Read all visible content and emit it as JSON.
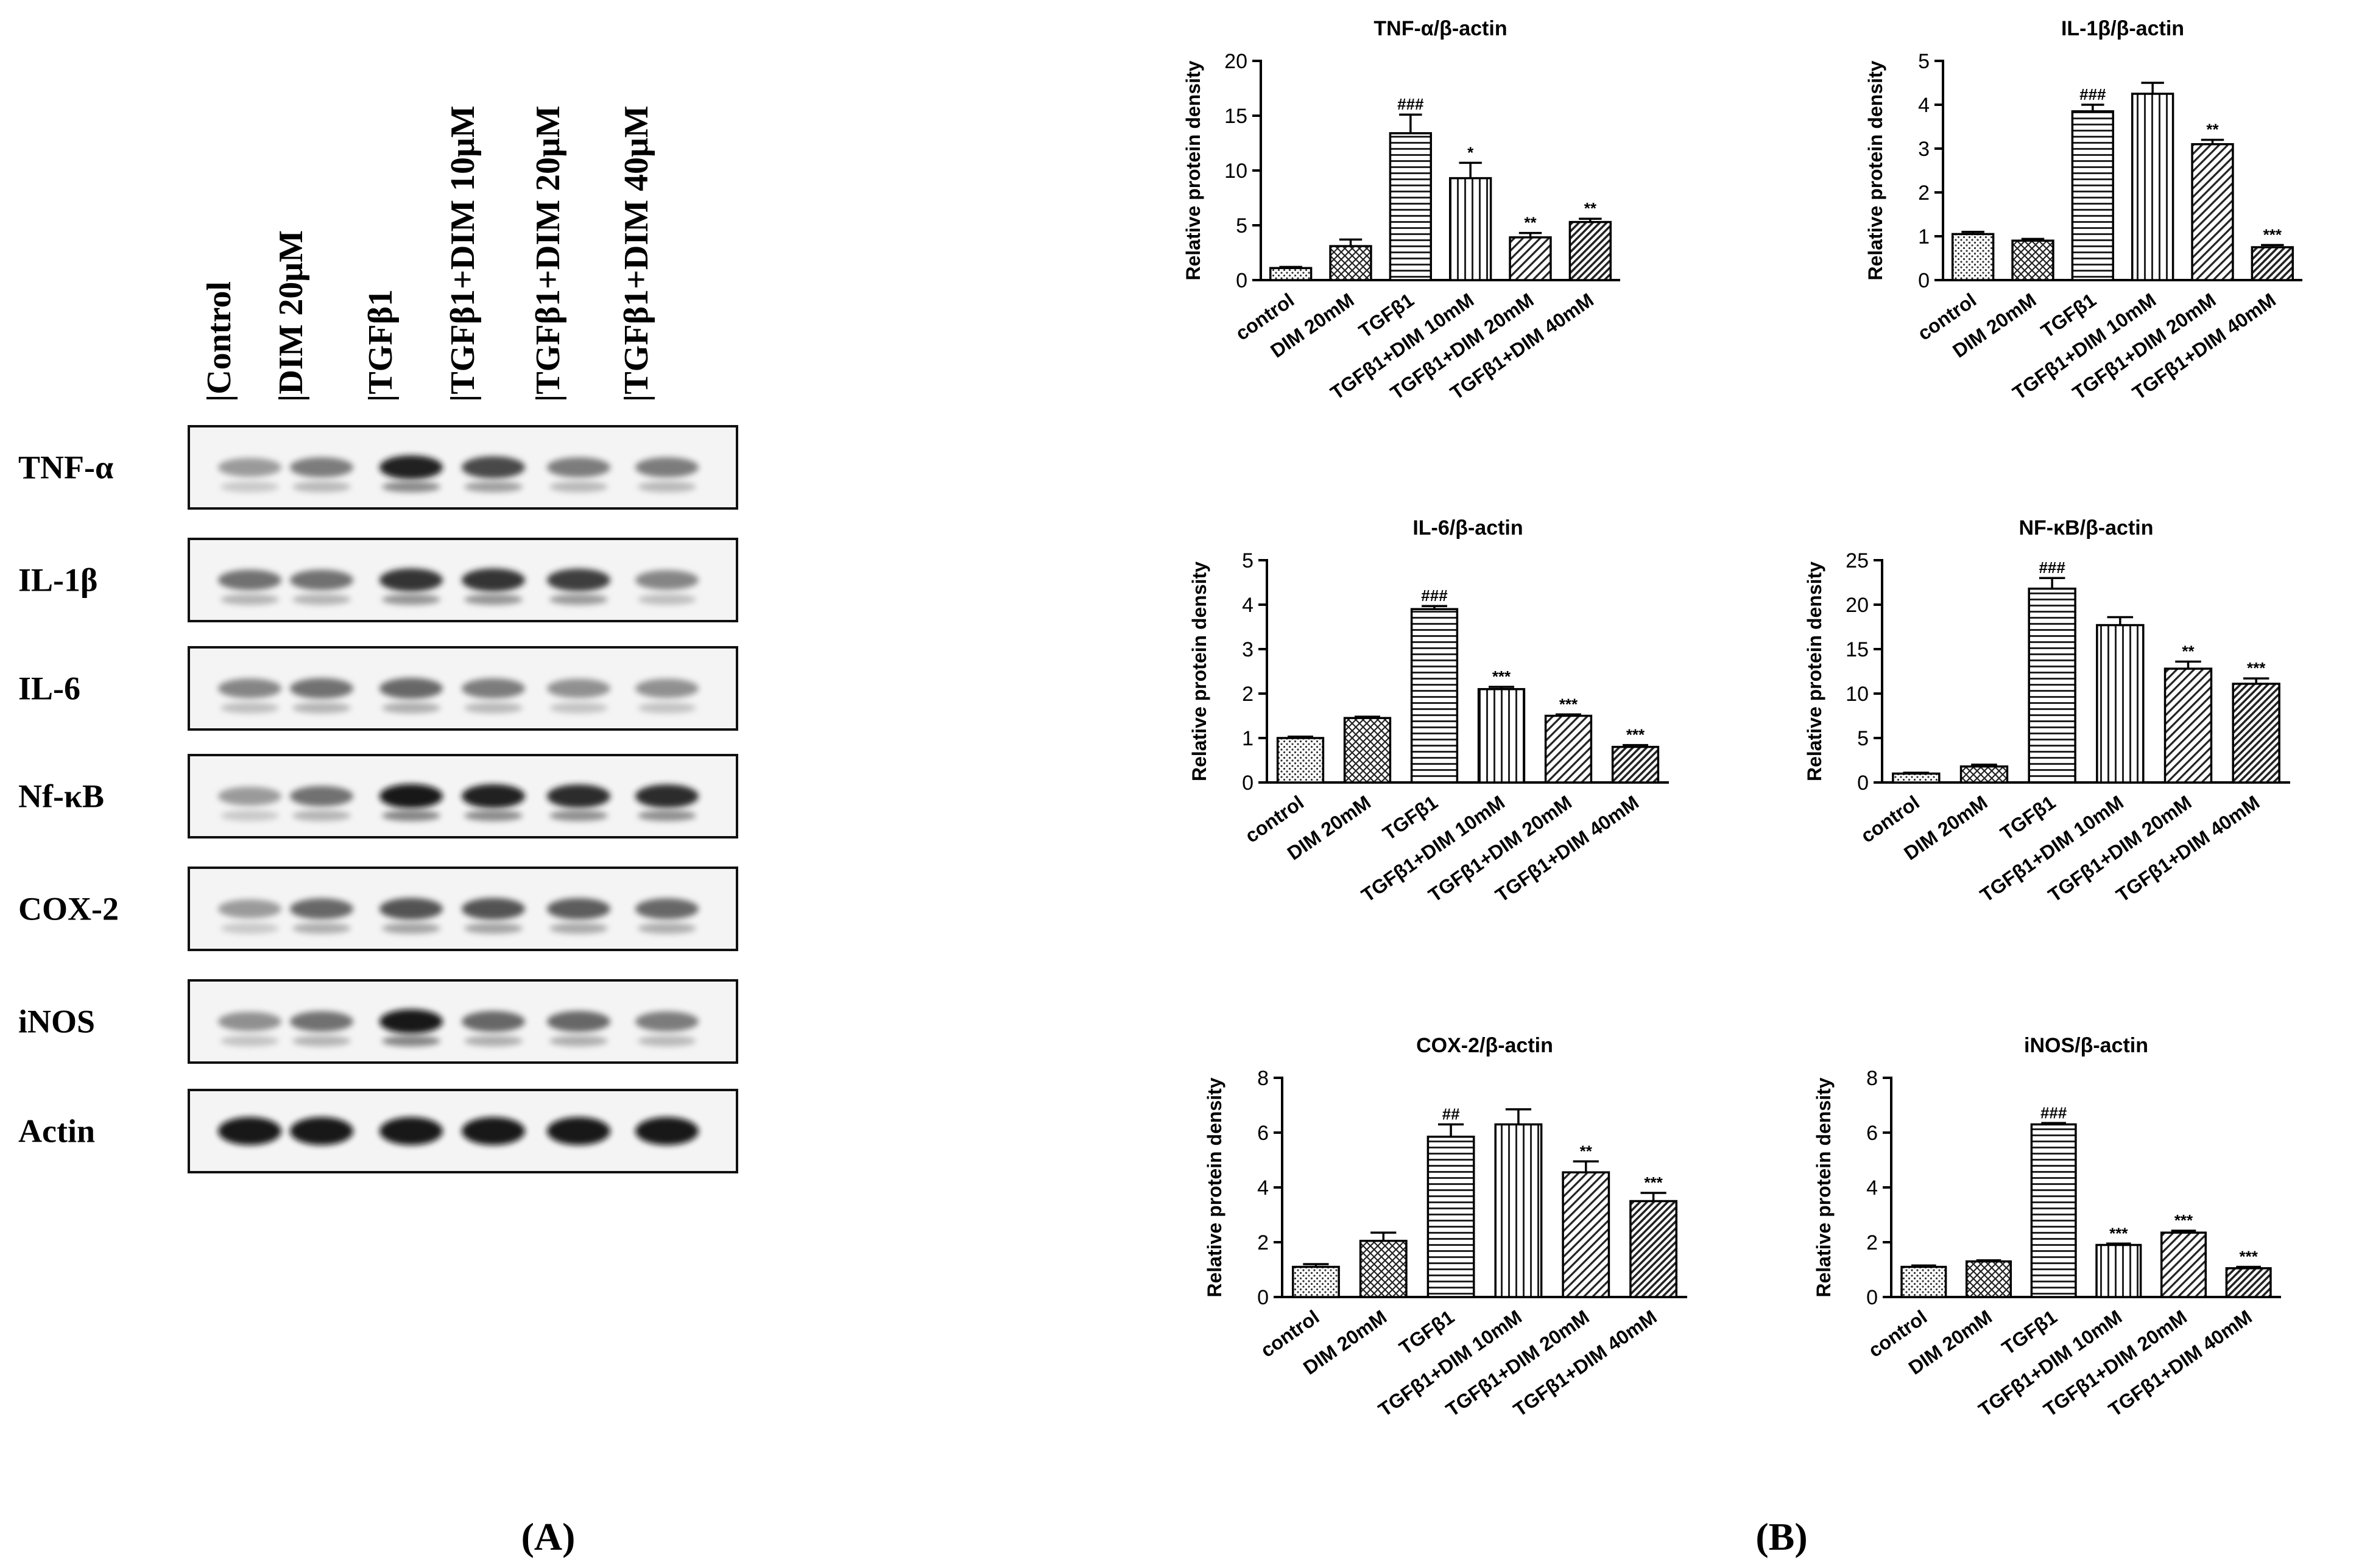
{
  "panel_labels": {
    "A": "(A)",
    "B": "(B)"
  },
  "blot": {
    "lane_labels": [
      "Control",
      "DIM 20μM",
      "TGFβ1",
      "TGFβ1+DIM 10μM",
      "TGFβ1+DIM 20μM",
      "TGFβ1+DIM 40μM"
    ],
    "rows": [
      {
        "label": "TNF-α",
        "bands": [
          0.35,
          0.5,
          0.95,
          0.75,
          0.5,
          0.5
        ]
      },
      {
        "label": "IL-1β",
        "bands": [
          0.55,
          0.55,
          0.85,
          0.85,
          0.8,
          0.45
        ]
      },
      {
        "label": "IL-6",
        "bands": [
          0.45,
          0.55,
          0.6,
          0.5,
          0.4,
          0.4
        ]
      },
      {
        "label": "Nf-κB",
        "bands": [
          0.35,
          0.55,
          1.0,
          0.95,
          0.9,
          0.9
        ]
      },
      {
        "label": "COX-2",
        "bands": [
          0.35,
          0.6,
          0.7,
          0.7,
          0.65,
          0.6
        ]
      },
      {
        "label": "iNOS",
        "bands": [
          0.4,
          0.55,
          1.0,
          0.6,
          0.6,
          0.5
        ]
      },
      {
        "label": "Actin",
        "bands": [
          1.0,
          1.0,
          1.0,
          1.0,
          1.0,
          1.0
        ]
      }
    ]
  },
  "chart_data": [
    {
      "type": "bar",
      "title": "TNF-α/β-actin",
      "ylabel": "Relative protein density",
      "xlabel": "",
      "categories": [
        "control",
        "DIM 20mM",
        "TGFβ1",
        "TGFβ1+DIM 10mM",
        "TGFβ1+DIM 20mM",
        "TGFβ1+DIM 40mM"
      ],
      "values": [
        1.1,
        3.1,
        13.4,
        9.3,
        3.9,
        5.3
      ],
      "errors": [
        0.1,
        0.6,
        1.7,
        1.4,
        0.4,
        0.3
      ],
      "annotations": [
        "",
        "",
        "###",
        "*",
        "**",
        "**"
      ],
      "ylim": [
        0,
        20
      ],
      "yticks": [
        0,
        5,
        10,
        15,
        20
      ]
    },
    {
      "type": "bar",
      "title": "IL-1β/β-actin",
      "ylabel": "Relative protein density",
      "xlabel": "",
      "categories": [
        "control",
        "DIM 20mM",
        "TGFβ1",
        "TGFβ1+DIM 10mM",
        "TGFβ1+DIM 20mM",
        "TGFβ1+DIM 40mM"
      ],
      "values": [
        1.05,
        0.9,
        3.85,
        4.25,
        3.1,
        0.75
      ],
      "errors": [
        0.05,
        0.04,
        0.15,
        0.25,
        0.1,
        0.05
      ],
      "annotations": [
        "",
        "",
        "###",
        "",
        "**",
        "***"
      ],
      "ylim": [
        0,
        5
      ],
      "yticks": [
        0,
        1,
        2,
        3,
        4,
        5
      ]
    },
    {
      "type": "bar",
      "title": "IL-6/β-actin",
      "ylabel": "Relative protein density",
      "xlabel": "",
      "categories": [
        "control",
        "DIM 20mM",
        "TGFβ1",
        "TGFβ1+DIM 10mM",
        "TGFβ1+DIM 20mM",
        "TGFβ1+DIM 40mM"
      ],
      "values": [
        1.0,
        1.45,
        3.9,
        2.1,
        1.5,
        0.8
      ],
      "errors": [
        0.03,
        0.03,
        0.07,
        0.05,
        0.03,
        0.04
      ],
      "annotations": [
        "",
        "",
        "###",
        "***",
        "***",
        "***"
      ],
      "ylim": [
        0,
        5
      ],
      "yticks": [
        0,
        1,
        2,
        3,
        4,
        5
      ]
    },
    {
      "type": "bar",
      "title": "NF-κB/β-actin",
      "ylabel": "Relative protein density",
      "xlabel": "",
      "categories": [
        "control",
        "DIM 20mM",
        "TGFβ1",
        "TGFβ1+DIM 10mM",
        "TGFβ1+DIM 20mM",
        "TGFβ1+DIM 40mM"
      ],
      "values": [
        1.0,
        1.8,
        21.8,
        17.7,
        12.8,
        11.1
      ],
      "errors": [
        0.1,
        0.2,
        1.2,
        0.9,
        0.8,
        0.6
      ],
      "annotations": [
        "",
        "",
        "###",
        "",
        "**",
        "***"
      ],
      "ylim": [
        0,
        25
      ],
      "yticks": [
        0,
        5,
        10,
        15,
        20,
        25
      ]
    },
    {
      "type": "bar",
      "title": "COX-2/β-actin",
      "ylabel": "Relative protein density",
      "xlabel": "",
      "categories": [
        "control",
        "DIM 20mM",
        "TGFβ1",
        "TGFβ1+DIM 10mM",
        "TGFβ1+DIM 20mM",
        "TGFβ1+DIM 40mM"
      ],
      "values": [
        1.1,
        2.05,
        5.85,
        6.3,
        4.55,
        3.5
      ],
      "errors": [
        0.1,
        0.3,
        0.45,
        0.55,
        0.4,
        0.3
      ],
      "annotations": [
        "",
        "",
        "##",
        "",
        "**",
        "***"
      ],
      "ylim": [
        0,
        8
      ],
      "yticks": [
        0,
        2,
        4,
        6,
        8
      ]
    },
    {
      "type": "bar",
      "title": "iNOS/β-actin",
      "ylabel": "Relative protein density",
      "xlabel": "",
      "categories": [
        "control",
        "DIM 20mM",
        "TGFβ1",
        "TGFβ1+DIM 10mM",
        "TGFβ1+DIM 20mM",
        "TGFβ1+DIM 40mM"
      ],
      "values": [
        1.1,
        1.3,
        6.3,
        1.9,
        2.35,
        1.05
      ],
      "errors": [
        0.05,
        0.04,
        0.05,
        0.05,
        0.07,
        0.05
      ],
      "annotations": [
        "",
        "",
        "###",
        "***",
        "***",
        "***"
      ],
      "ylim": [
        0,
        8
      ],
      "yticks": [
        0,
        2,
        4,
        6,
        8
      ]
    }
  ]
}
